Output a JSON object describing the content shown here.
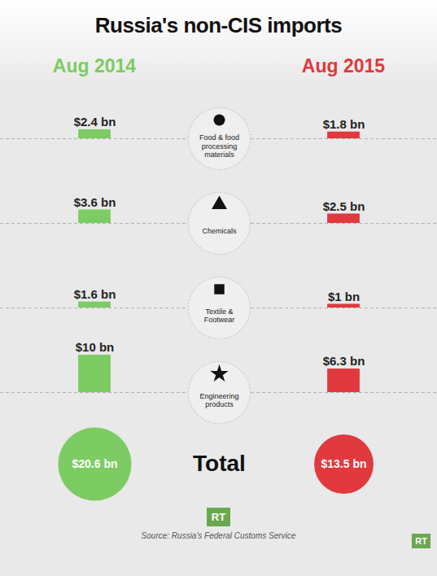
{
  "chart_data": {
    "type": "bar",
    "title": "Russia's non-CIS imports",
    "categories": [
      "Food & food processing materials",
      "Chemicals",
      "Textile & Footwear",
      "Engineering products"
    ],
    "series": [
      {
        "name": "Aug 2014",
        "color": "#7ccc63",
        "values": [
          2.4,
          3.6,
          1.6,
          10
        ],
        "value_labels": [
          "$2.4 bn",
          "$3.6 bn",
          "$1.6 bn",
          "$10 bn"
        ],
        "total": 20.6,
        "total_label": "$20.6 bn"
      },
      {
        "name": "Aug 2015",
        "color": "#e0393e",
        "values": [
          1.8,
          2.5,
          1,
          6.3
        ],
        "value_labels": [
          "$1.8 bn",
          "$2.5 bn",
          "$1 bn",
          "$6.3 bn"
        ],
        "total": 13.5,
        "total_label": "$13.5 bn"
      }
    ],
    "total_title": "Total",
    "ylim": [
      0,
      10
    ],
    "yticks": [],
    "grid": false,
    "data_labels": true,
    "tick_labels": false,
    "source": "Source: Russia's Federal Customs Service",
    "logo": "RT"
  }
}
